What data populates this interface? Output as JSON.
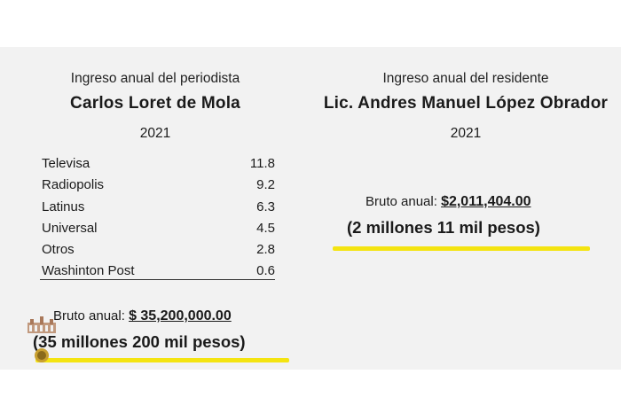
{
  "left": {
    "subtitle": "Ingreso anual del periodista",
    "name": "Carlos Loret de Mola",
    "year": "2021",
    "rows": [
      {
        "source": "Televisa",
        "value": "11.8"
      },
      {
        "source": "Radiopolis",
        "value": "9.2"
      },
      {
        "source": "Latinus",
        "value": "6.3"
      },
      {
        "source": "Universal",
        "value": "4.5"
      },
      {
        "source": "Otros",
        "value": "2.8"
      },
      {
        "source": "Washinton Post",
        "value": "0.6"
      }
    ],
    "total_label": "Bruto anual:",
    "total_amount": "$ 35,200,000.00",
    "total_words": "(35 millones 200 mil pesos)"
  },
  "right": {
    "subtitle": "Ingreso anual del residente",
    "name": "Lic. Andres Manuel López Obrador",
    "year": "2021",
    "total_label": "Bruto anual:",
    "total_amount": "$2,011,404.00",
    "total_words": "(2 millones 11 mil pesos)"
  },
  "colors": {
    "highlight": "#f4e411",
    "slide_background": "#f2f2f2",
    "text": "#1a1a1a"
  },
  "icons": {
    "logo": "palace-logo-icon"
  }
}
